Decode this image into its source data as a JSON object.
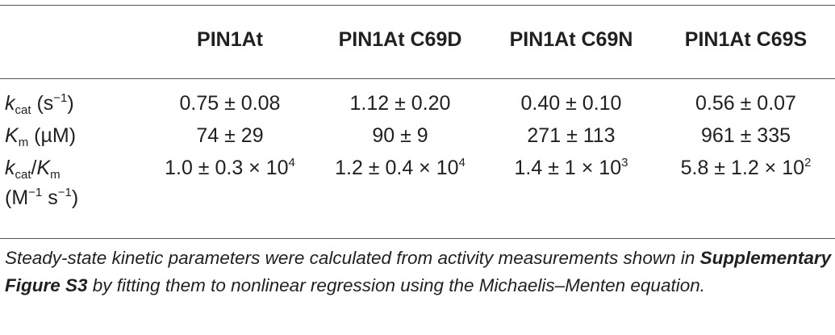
{
  "table": {
    "columns": [
      "PIN1At",
      "PIN1At C69D",
      "PIN1At C69N",
      "PIN1At C69S"
    ],
    "rows": {
      "kcat": {
        "label_symbol": "k",
        "label_sub": "cat",
        "label_unit": " (s",
        "label_unit_sup": "−1",
        "label_unit_end": ")",
        "values": [
          "0.75 ± 0.08",
          "1.12 ± 0.20",
          "0.40 ± 0.10",
          "0.56 ± 0.07"
        ]
      },
      "km": {
        "label_symbol": "K",
        "label_sub": "m",
        "label_unit": " (µM)",
        "values": [
          "74 ± 29",
          "90 ± 9",
          "271 ± 113",
          "961 ± 335"
        ]
      },
      "ratio": {
        "label_symbol_1": "k",
        "label_sub_1": "cat",
        "label_sep": "/",
        "label_symbol_2": "K",
        "label_sub_2": "m",
        "label_unit_line2_a": "(M",
        "label_unit_line2_sup_a": "−1",
        "label_unit_line2_b": " s",
        "label_unit_line2_sup_b": "−1",
        "label_unit_line2_c": ")",
        "values": [
          {
            "base": "1.0 ± 0.3 × 10",
            "exp": "4"
          },
          {
            "base": "1.2 ± 0.4 × 10",
            "exp": "4"
          },
          {
            "base": "1.4 ± 1 × 10",
            "exp": "3"
          },
          {
            "base": "5.8 ± 1.2 × 10",
            "exp": "2"
          }
        ]
      }
    }
  },
  "caption": {
    "part1": "Steady-state kinetic parameters were calculated from activity measurements shown in ",
    "bold": "Supplementary Figure S3",
    "part2": " by fitting them to nonlinear regression using the Michaelis–Menten equation."
  }
}
